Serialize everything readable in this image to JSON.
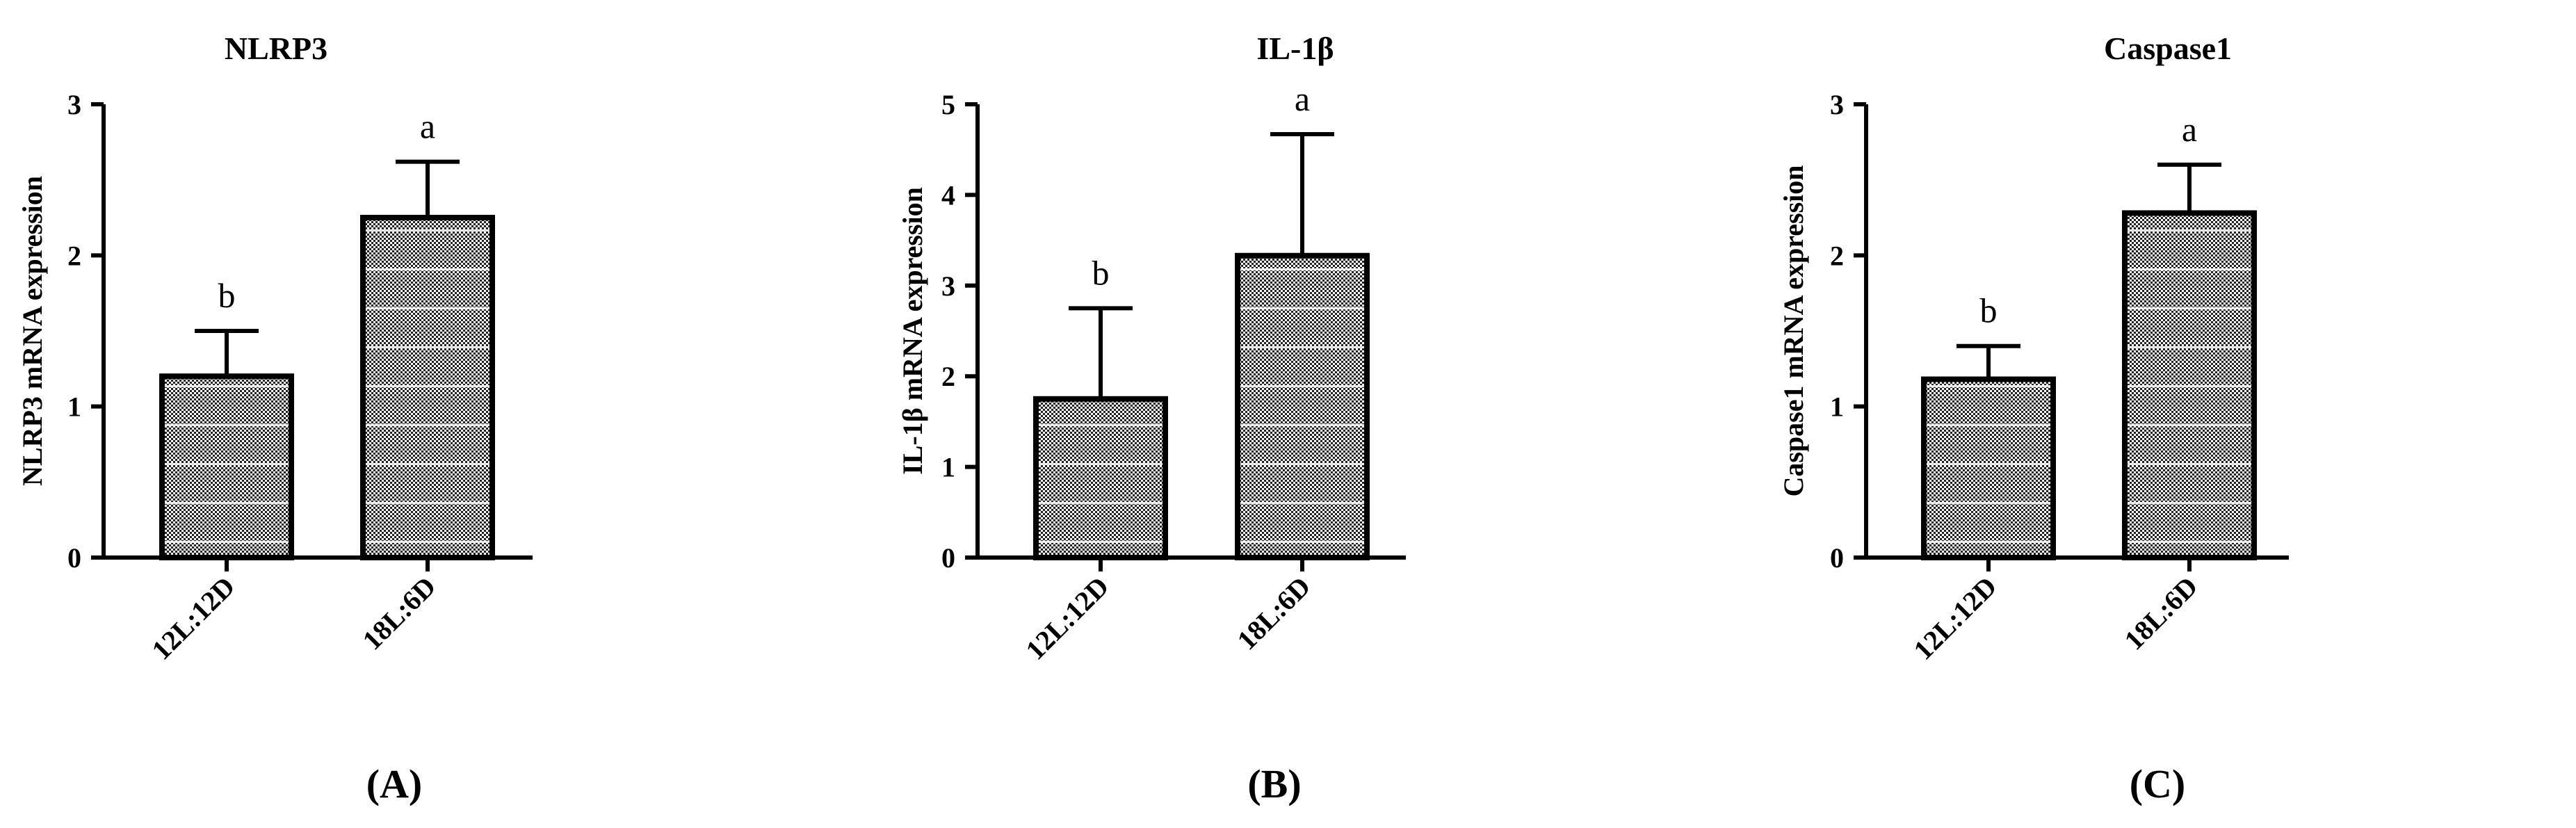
{
  "chart_data": [
    {
      "type": "bar",
      "panel_label": "(A)",
      "title": "NLRP3",
      "ylabel": "NLRP3 mRNA expression",
      "ylim": [
        0,
        3
      ],
      "yticks": [
        "0",
        "1",
        "2",
        "3"
      ],
      "categories": [
        "12L:12D",
        "18L:6D"
      ],
      "values": [
        1.2,
        2.25
      ],
      "errors": [
        0.3,
        0.37
      ],
      "letters": [
        "b",
        "a"
      ]
    },
    {
      "type": "bar",
      "panel_label": "(B)",
      "title": "IL-1β",
      "ylabel": "IL-1β  mRNA expression",
      "ylim": [
        0,
        5
      ],
      "yticks": [
        "0",
        "1",
        "2",
        "3",
        "4",
        "5"
      ],
      "categories": [
        "12L:12D",
        "18L:6D"
      ],
      "values": [
        1.75,
        3.33
      ],
      "errors": [
        1.0,
        1.34
      ],
      "letters": [
        "b",
        "a"
      ]
    },
    {
      "type": "bar",
      "panel_label": "(C)",
      "title": "Caspase1",
      "ylabel": "Caspase1 mRNA expression",
      "ylim": [
        0,
        3
      ],
      "yticks": [
        "0",
        "1",
        "2",
        "3"
      ],
      "categories": [
        "12L:12D",
        "18L:6D"
      ],
      "values": [
        1.18,
        2.28
      ],
      "errors": [
        0.22,
        0.32
      ],
      "letters": [
        "b",
        "a"
      ]
    }
  ]
}
